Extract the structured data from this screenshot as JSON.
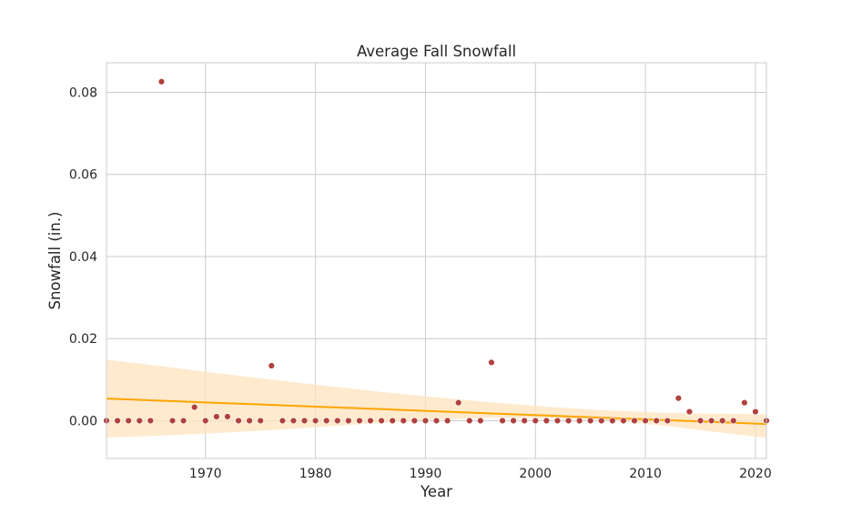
{
  "chart_data": {
    "type": "scatter",
    "title": "Average Fall Snowfall",
    "xlabel": "Year",
    "ylabel": "Snowfall (in.)",
    "xlim": [
      1961,
      2021
    ],
    "ylim": [
      -0.0092,
      0.0872
    ],
    "x_ticks": [
      1970,
      1980,
      1990,
      2000,
      2010,
      2020
    ],
    "y_ticks": [
      0.0,
      0.02,
      0.04,
      0.06,
      0.08
    ],
    "y_tick_labels": [
      "0.00",
      "0.02",
      "0.04",
      "0.06",
      "0.08"
    ],
    "grid": true,
    "legend": "none",
    "point_color": "#b0413e",
    "trend_color": "#ffa500",
    "band_color": "#ffe3bd",
    "points": [
      {
        "x": 1961,
        "y": 0.0
      },
      {
        "x": 1962,
        "y": 0.0
      },
      {
        "x": 1963,
        "y": 0.0
      },
      {
        "x": 1964,
        "y": 0.0
      },
      {
        "x": 1965,
        "y": 0.0
      },
      {
        "x": 1966,
        "y": 0.0826
      },
      {
        "x": 1967,
        "y": 0.0
      },
      {
        "x": 1968,
        "y": 0.0
      },
      {
        "x": 1969,
        "y": 0.0033
      },
      {
        "x": 1970,
        "y": 0.0
      },
      {
        "x": 1971,
        "y": 0.001
      },
      {
        "x": 1972,
        "y": 0.001
      },
      {
        "x": 1973,
        "y": 0.0
      },
      {
        "x": 1974,
        "y": 0.0
      },
      {
        "x": 1975,
        "y": 0.0
      },
      {
        "x": 1976,
        "y": 0.0134
      },
      {
        "x": 1977,
        "y": 0.0
      },
      {
        "x": 1978,
        "y": 0.0
      },
      {
        "x": 1979,
        "y": 0.0
      },
      {
        "x": 1980,
        "y": 0.0
      },
      {
        "x": 1981,
        "y": 0.0
      },
      {
        "x": 1982,
        "y": 0.0
      },
      {
        "x": 1983,
        "y": 0.0
      },
      {
        "x": 1984,
        "y": 0.0
      },
      {
        "x": 1985,
        "y": 0.0
      },
      {
        "x": 1986,
        "y": 0.0
      },
      {
        "x": 1987,
        "y": 0.0
      },
      {
        "x": 1988,
        "y": 0.0
      },
      {
        "x": 1989,
        "y": 0.0
      },
      {
        "x": 1990,
        "y": 0.0
      },
      {
        "x": 1991,
        "y": 0.0
      },
      {
        "x": 1992,
        "y": 0.0
      },
      {
        "x": 1993,
        "y": 0.0044
      },
      {
        "x": 1994,
        "y": 0.0
      },
      {
        "x": 1995,
        "y": 0.0
      },
      {
        "x": 1996,
        "y": 0.0142
      },
      {
        "x": 1997,
        "y": 0.0
      },
      {
        "x": 1998,
        "y": 0.0
      },
      {
        "x": 1999,
        "y": 0.0
      },
      {
        "x": 2000,
        "y": 0.0
      },
      {
        "x": 2001,
        "y": 0.0
      },
      {
        "x": 2002,
        "y": 0.0
      },
      {
        "x": 2003,
        "y": 0.0
      },
      {
        "x": 2004,
        "y": 0.0
      },
      {
        "x": 2005,
        "y": 0.0
      },
      {
        "x": 2006,
        "y": 0.0
      },
      {
        "x": 2007,
        "y": 0.0
      },
      {
        "x": 2008,
        "y": 0.0
      },
      {
        "x": 2009,
        "y": 0.0
      },
      {
        "x": 2010,
        "y": 0.0
      },
      {
        "x": 2011,
        "y": 0.0
      },
      {
        "x": 2012,
        "y": 0.0
      },
      {
        "x": 2013,
        "y": 0.0055
      },
      {
        "x": 2014,
        "y": 0.0022
      },
      {
        "x": 2015,
        "y": 0.0
      },
      {
        "x": 2016,
        "y": 0.0
      },
      {
        "x": 2017,
        "y": 0.0
      },
      {
        "x": 2018,
        "y": 0.0
      },
      {
        "x": 2019,
        "y": 0.0044
      },
      {
        "x": 2020,
        "y": 0.0022
      },
      {
        "x": 2021,
        "y": 0.0
      }
    ],
    "trend": {
      "x": [
        1961,
        2021
      ],
      "y": [
        0.0054,
        -0.0008
      ]
    },
    "confidence_band": {
      "x": [
        1961,
        1966,
        1971,
        1976,
        1981,
        1986,
        1991,
        1996,
        2001,
        2006,
        2011,
        2016,
        2021
      ],
      "upper": [
        0.0149,
        0.0133,
        0.0116,
        0.01,
        0.0085,
        0.007,
        0.0057,
        0.0045,
        0.0034,
        0.0026,
        0.002,
        0.0017,
        0.0016
      ],
      "lower": [
        -0.0041,
        -0.0036,
        -0.003,
        -0.0023,
        -0.0014,
        -0.0005,
        0.0003,
        0.0007,
        0.0006,
        0.0002,
        -0.001,
        -0.0026,
        -0.0042
      ]
    }
  }
}
